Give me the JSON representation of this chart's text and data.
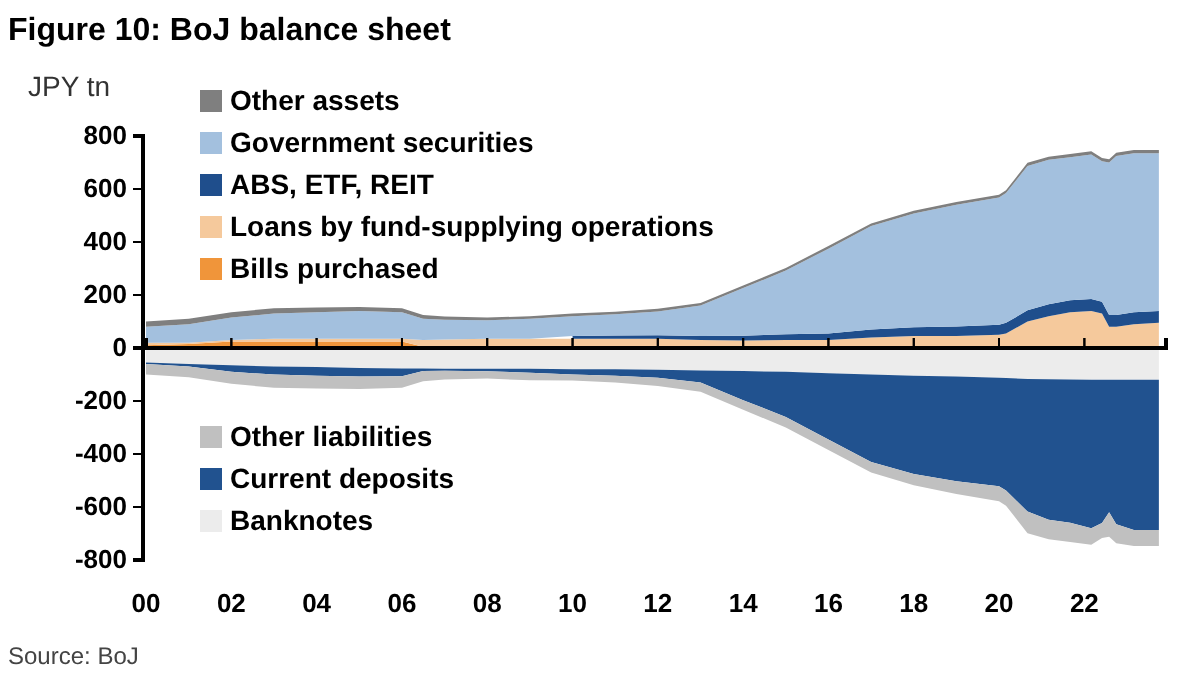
{
  "chart_data": [
    {
      "type": "area",
      "title": "Figure 10: BoJ balance sheet",
      "ylabel": "JPY tn",
      "stacked": true,
      "legend": "top left",
      "tick_labels": "y",
      "x": [
        "2000-01",
        "2001-01",
        "2002-01",
        "2003-01",
        "2004-01",
        "2005-01",
        "2006-01",
        "2006-07",
        "2007-01",
        "2008-01",
        "2009-01",
        "2010-01",
        "2011-01",
        "2012-01",
        "2013-01",
        "2014-01",
        "2015-01",
        "2016-01",
        "2017-01",
        "2018-01",
        "2019-01",
        "2020-01",
        "2020-03",
        "2020-09",
        "2021-03",
        "2021-09",
        "2022-03",
        "2022-06",
        "2022-08",
        "2022-10",
        "2023-03",
        "2023-10"
      ],
      "xlim": [
        "2000-01",
        "2023-12"
      ],
      "xticks": [
        "2000-01",
        "2002-01",
        "2004-01",
        "2006-01",
        "2008-01",
        "2010-01",
        "2012-01",
        "2014-01",
        "2016-01",
        "2018-01",
        "2020-01",
        "2022-01"
      ],
      "ylim": [
        0,
        800
      ],
      "yticks": [
        0,
        200,
        400,
        600,
        800
      ],
      "series": [
        {
          "name": "Bills purchased",
          "color": "#f0953a",
          "values": [
            10,
            15,
            25,
            25,
            25,
            25,
            25,
            5,
            2,
            0,
            0,
            0,
            0,
            0,
            0,
            0,
            0,
            0,
            0,
            0,
            0,
            0,
            0,
            0,
            0,
            0,
            0,
            0,
            0,
            0,
            0,
            0
          ]
        },
        {
          "name": "Loans by fund-supplying operations",
          "color": "#f5c99c",
          "values": [
            10,
            5,
            5,
            10,
            10,
            10,
            10,
            25,
            30,
            35,
            35,
            35,
            35,
            35,
            30,
            28,
            30,
            30,
            40,
            45,
            45,
            50,
            55,
            100,
            120,
            135,
            140,
            130,
            80,
            80,
            90,
            95
          ]
        },
        {
          "name": "ABS, ETF, REIT",
          "color": "#1f4e8c",
          "values": [
            null,
            null,
            null,
            null,
            null,
            null,
            null,
            null,
            null,
            null,
            null,
            10,
            12,
            13,
            15,
            18,
            22,
            25,
            30,
            33,
            36,
            38,
            40,
            42,
            45,
            45,
            45,
            45,
            45,
            45,
            45,
            45
          ]
        },
        {
          "name": "Government securities",
          "color": "#a3c0de",
          "values": [
            60,
            70,
            85,
            95,
            100,
            105,
            100,
            80,
            75,
            70,
            75,
            75,
            80,
            90,
            115,
            180,
            240,
            320,
            390,
            430,
            460,
            480,
            490,
            545,
            545,
            540,
            545,
            530,
            575,
            600,
            600,
            595
          ]
        },
        {
          "name": "Other assets",
          "color": "#7f7f7f",
          "values": [
            20,
            20,
            20,
            20,
            18,
            15,
            15,
            15,
            12,
            10,
            10,
            10,
            10,
            10,
            10,
            10,
            10,
            10,
            10,
            10,
            10,
            10,
            10,
            12,
            12,
            12,
            12,
            12,
            12,
            12,
            12,
            12
          ]
        }
      ]
    },
    {
      "type": "area",
      "stacked": true,
      "legend": "bottom left",
      "annotations": [
        "Source: BoJ"
      ],
      "x": [
        "2000-01",
        "2001-01",
        "2002-01",
        "2003-01",
        "2004-01",
        "2005-01",
        "2006-01",
        "2006-07",
        "2007-01",
        "2008-01",
        "2009-01",
        "2010-01",
        "2011-01",
        "2012-01",
        "2013-01",
        "2014-01",
        "2015-01",
        "2016-01",
        "2017-01",
        "2018-01",
        "2019-01",
        "2020-01",
        "2020-03",
        "2020-09",
        "2021-03",
        "2021-09",
        "2022-03",
        "2022-06",
        "2022-08",
        "2022-10",
        "2023-03",
        "2023-10"
      ],
      "xlim": [
        "2000-01",
        "2023-12"
      ],
      "xticks": [
        {
          "value": "2000-01",
          "label": "00"
        },
        {
          "value": "2002-01",
          "label": "02"
        },
        {
          "value": "2004-01",
          "label": "04"
        },
        {
          "value": "2006-01",
          "label": "06"
        },
        {
          "value": "2008-01",
          "label": "08"
        },
        {
          "value": "2010-01",
          "label": "10"
        },
        {
          "value": "2012-01",
          "label": "12"
        },
        {
          "value": "2014-01",
          "label": "14"
        },
        {
          "value": "2016-01",
          "label": "16"
        },
        {
          "value": "2018-01",
          "label": "18"
        },
        {
          "value": "2020-01",
          "label": "20"
        },
        {
          "value": "2022-01",
          "label": "22"
        }
      ],
      "ylim": [
        -800,
        0
      ],
      "yticks": [
        -800,
        -600,
        -400,
        -200
      ],
      "series": [
        {
          "name": "Banknotes",
          "color": "#ececec",
          "values": [
            -55,
            -60,
            -65,
            -70,
            -72,
            -75,
            -77,
            -77,
            -78,
            -78,
            -78,
            -80,
            -80,
            -82,
            -85,
            -87,
            -90,
            -95,
            -100,
            -105,
            -108,
            -112,
            -113,
            -117,
            -118,
            -119,
            -120,
            -120,
            -120,
            -120,
            -120,
            -120
          ]
        },
        {
          "name": "Current deposits",
          "color": "#21528f",
          "values": [
            -5,
            -10,
            -25,
            -30,
            -33,
            -33,
            -30,
            -10,
            -8,
            -10,
            -15,
            -20,
            -25,
            -30,
            -45,
            -110,
            -170,
            -250,
            -330,
            -370,
            -395,
            -410,
            -425,
            -500,
            -530,
            -540,
            -560,
            -540,
            -500,
            -545,
            -567,
            -567
          ]
        },
        {
          "name": "Other liabilities",
          "color": "#c0c0c0",
          "values": [
            -40,
            -40,
            -45,
            -50,
            -48,
            -47,
            -43,
            -38,
            -33,
            -27,
            -29,
            -23,
            -25,
            -31,
            -35,
            -36,
            -40,
            -40,
            -40,
            -43,
            -48,
            -56,
            -57,
            -82,
            -74,
            -73,
            -62,
            -57,
            -92,
            -72,
            -60,
            -60
          ]
        }
      ]
    }
  ]
}
